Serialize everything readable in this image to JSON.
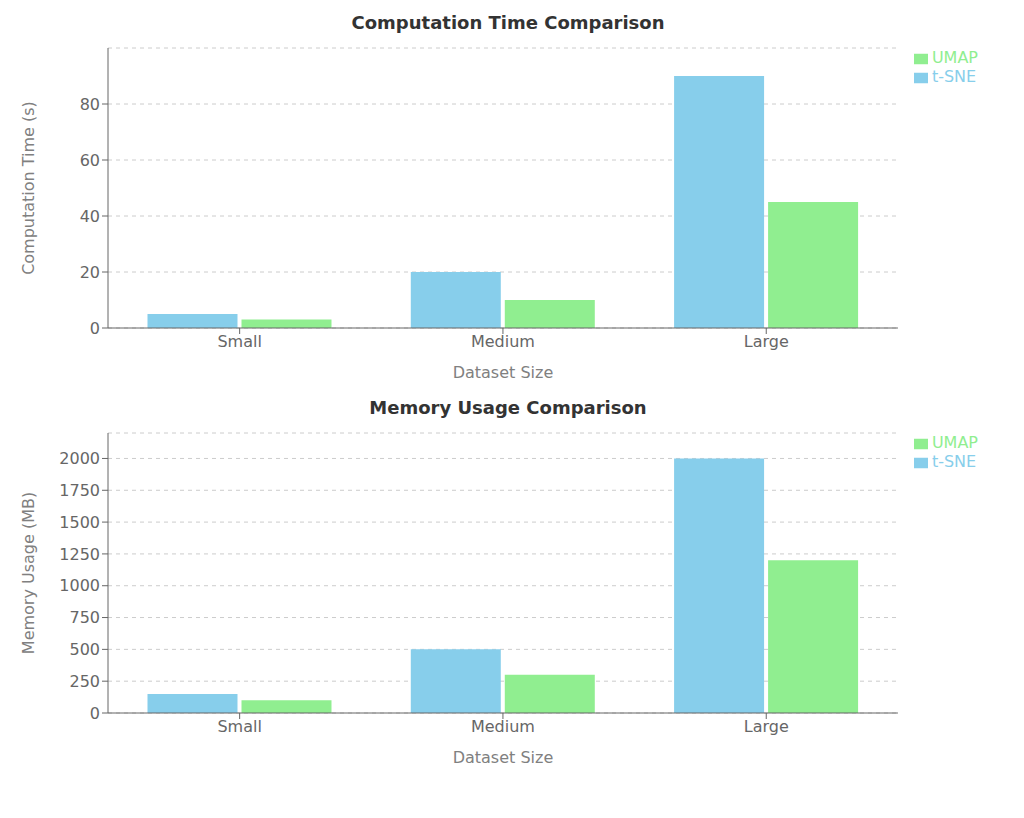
{
  "chart_data": [
    {
      "type": "bar",
      "title": "Computation Time Comparison",
      "xlabel": "Dataset Size",
      "ylabel": "Computation Time (s)",
      "categories": [
        "Small",
        "Medium",
        "Large"
      ],
      "series": [
        {
          "name": "t-SNE",
          "color": "#87CEEB",
          "values": [
            5,
            20,
            90
          ]
        },
        {
          "name": "UMAP",
          "color": "#90EE90",
          "values": [
            3,
            10,
            45
          ]
        }
      ],
      "ylim": [
        0,
        100
      ],
      "yticks": [
        0,
        20,
        40,
        60,
        80
      ],
      "grid": true,
      "legend": "upper right"
    },
    {
      "type": "bar",
      "title": "Memory Usage Comparison",
      "xlabel": "Dataset Size",
      "ylabel": "Memory Usage (MB)",
      "categories": [
        "Small",
        "Medium",
        "Large"
      ],
      "series": [
        {
          "name": "t-SNE",
          "color": "#87CEEB",
          "values": [
            150,
            500,
            2000
          ]
        },
        {
          "name": "UMAP",
          "color": "#90EE90",
          "values": [
            100,
            300,
            1200
          ]
        }
      ],
      "ylim": [
        0,
        2200
      ],
      "yticks": [
        0,
        250,
        500,
        750,
        1000,
        1250,
        1500,
        1750,
        2000
      ],
      "grid": true,
      "legend": "upper right"
    }
  ]
}
